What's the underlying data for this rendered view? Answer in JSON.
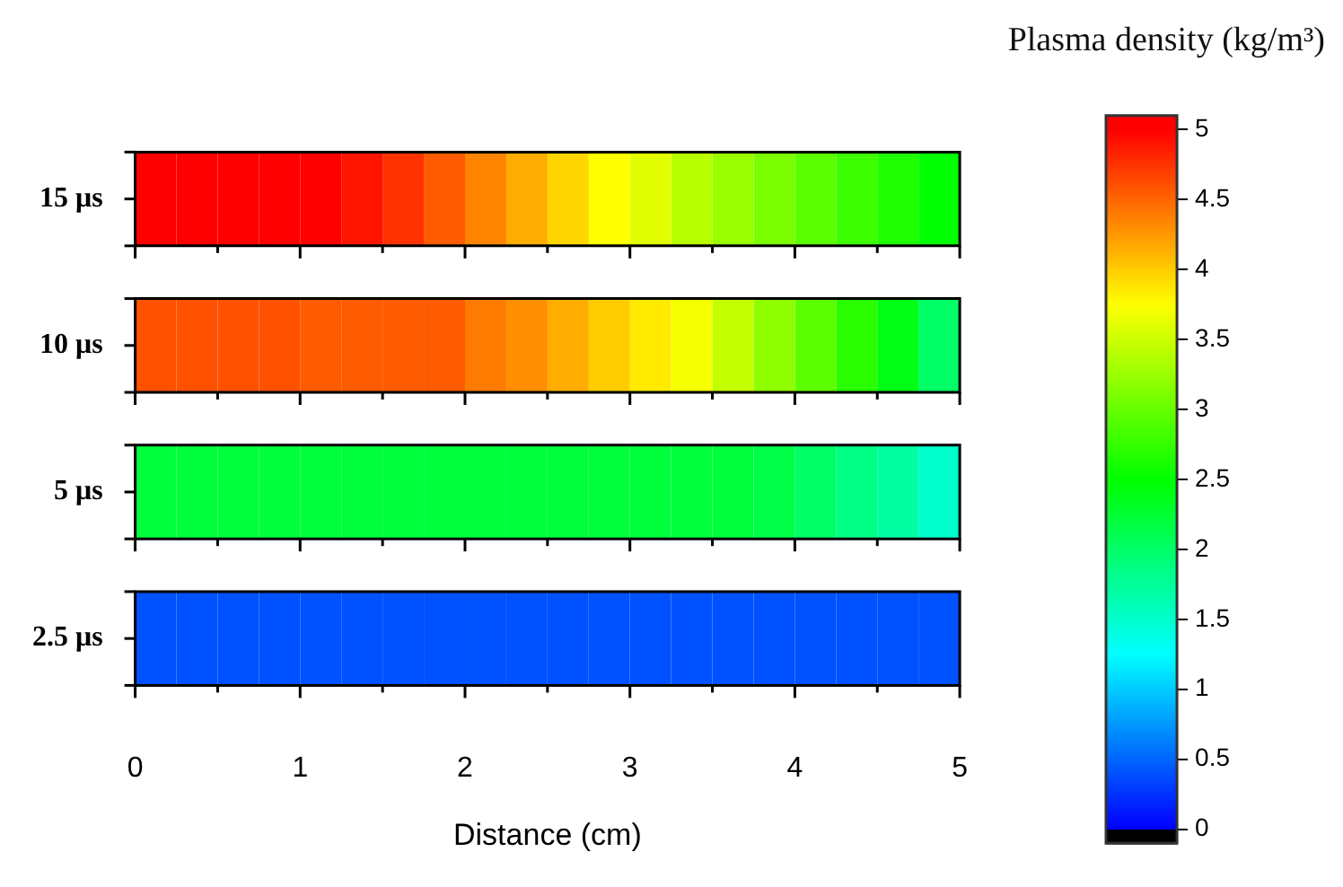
{
  "chart_data": {
    "type": "heatmap",
    "xlabel": "Distance (cm)",
    "clabel": "Plasma density (kg/m³)",
    "x": [
      0.125,
      0.375,
      0.625,
      0.875,
      1.125,
      1.375,
      1.625,
      1.875,
      2.125,
      2.375,
      2.625,
      2.875,
      3.125,
      3.375,
      3.625,
      3.875,
      4.125,
      4.375,
      4.625,
      4.875
    ],
    "xlim": [
      0,
      5
    ],
    "xticks": [
      0,
      {
        "value": 0.5,
        "label": null
      },
      1,
      {
        "value": 1.5,
        "label": null
      },
      2,
      {
        "value": 2.5,
        "label": null
      },
      3,
      {
        "value": 3.5,
        "label": null
      },
      4,
      {
        "value": 4.5,
        "label": null
      },
      5
    ],
    "y_categories": [
      "15 μs",
      "10 μs",
      "5 μs",
      "2.5 μs"
    ],
    "cells": [
      [
        5.0,
        5.0,
        5.0,
        5.0,
        5.0,
        4.9,
        4.75,
        4.55,
        4.35,
        4.15,
        3.95,
        3.75,
        3.6,
        3.4,
        3.25,
        3.1,
        2.95,
        2.8,
        2.65,
        2.5
      ],
      [
        4.6,
        4.6,
        4.6,
        4.6,
        4.55,
        4.55,
        4.55,
        4.55,
        4.4,
        4.3,
        4.15,
        4.0,
        3.85,
        3.7,
        3.45,
        3.2,
        2.95,
        2.7,
        2.4,
        2.0
      ],
      [
        2.2,
        2.2,
        2.2,
        2.2,
        2.2,
        2.2,
        2.2,
        2.2,
        2.2,
        2.2,
        2.2,
        2.2,
        2.2,
        2.2,
        2.2,
        2.15,
        2.0,
        1.85,
        1.7,
        1.5
      ],
      [
        0.4,
        0.4,
        0.4,
        0.4,
        0.4,
        0.4,
        0.4,
        0.4,
        0.4,
        0.4,
        0.4,
        0.4,
        0.4,
        0.4,
        0.4,
        0.4,
        0.4,
        0.4,
        0.4,
        0.4
      ]
    ],
    "clim": [
      -0.1,
      5.1
    ],
    "cticks": [
      0,
      0.5,
      1,
      1.5,
      2,
      2.5,
      3,
      3.5,
      4,
      4.5,
      5
    ]
  }
}
